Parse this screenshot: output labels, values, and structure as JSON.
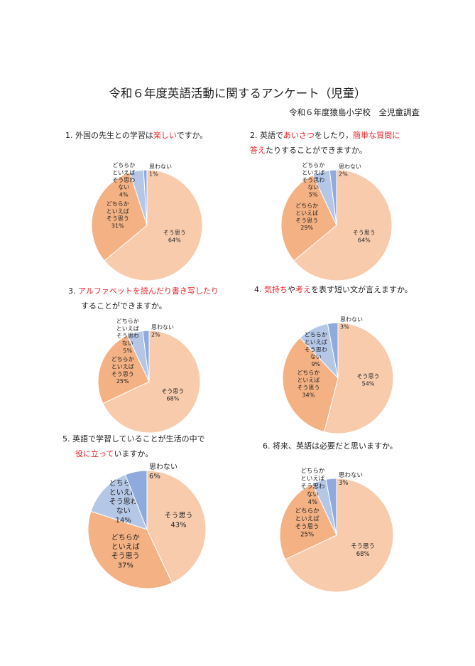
{
  "title": "令和６年度英語活動に関するアンケート（児童）",
  "subtitle": "令和６年度猿島小学校　全児童調査",
  "colors": {
    "accent_red": "#e8232a",
    "slices": [
      "#F8CBAD",
      "#F4B183",
      "#B4C7E7",
      "#8FAADC"
    ]
  },
  "questions": [
    {
      "lines": [
        [
          {
            "text": "1. 外国の先生との学習は",
            "red": false
          },
          {
            "text": "楽しい",
            "red": true
          },
          {
            "text": "ですか。",
            "red": false
          }
        ]
      ]
    },
    {
      "lines": [
        [
          {
            "text": "2. 英語で",
            "red": false
          },
          {
            "text": "あいさつ",
            "red": true
          },
          {
            "text": "をしたり，",
            "red": false
          },
          {
            "text": "簡単な質問に",
            "red": true
          }
        ],
        [
          {
            "text": "答え",
            "red": true
          },
          {
            "text": "たりすることができますか。",
            "red": false
          }
        ]
      ]
    },
    {
      "lines": [
        [
          {
            "text": "3. ",
            "red": false
          },
          {
            "text": "アルファベットを読んだり書き写したり",
            "red": true
          }
        ],
        [
          {
            "text": "することができますか。",
            "red": false
          }
        ]
      ]
    },
    {
      "lines": [
        [
          {
            "text": "4. ",
            "red": false
          },
          {
            "text": "気持ち",
            "red": true
          },
          {
            "text": "や",
            "red": false
          },
          {
            "text": "考え",
            "red": true
          },
          {
            "text": "を表す短い文が言えますか。",
            "red": false
          }
        ]
      ]
    },
    {
      "lines": [
        [
          {
            "text": "5. 英語で学習していることが生活の中で",
            "red": false
          }
        ],
        [
          {
            "text": "役に立って",
            "red": true
          },
          {
            "text": "いますか。",
            "red": false
          }
        ]
      ]
    },
    {
      "lines": [
        [
          {
            "text": "6. 将来、英語は必要だと思いますか。",
            "red": false
          }
        ]
      ]
    }
  ],
  "chart_data": [
    {
      "type": "pie",
      "categories": [
        "そう思う",
        "どちらかといえばそう思う",
        "どちらかといえばそう思わない",
        "思わない"
      ],
      "values": [
        64,
        31,
        4,
        1
      ],
      "labels": [
        [
          "そう思う",
          "64%"
        ],
        [
          "どちらか",
          "といえば",
          "そう思う",
          "31%"
        ],
        [
          "どちらか",
          "といえば",
          "そう思わ",
          "ない",
          "4%"
        ],
        [
          "思わない",
          "1%"
        ]
      ]
    },
    {
      "type": "pie",
      "categories": [
        "そう思う",
        "どちらかといえばそう思う",
        "どちらかといえばそう思わない",
        "思わない"
      ],
      "values": [
        64,
        29,
        5,
        2
      ],
      "labels": [
        [
          "そう思う",
          "64%"
        ],
        [
          "どちらか",
          "といえば",
          "そう思う",
          "29%"
        ],
        [
          "どちらか",
          "といえば",
          "そう思わ",
          "ない",
          "5%"
        ],
        [
          "思わない",
          "2%"
        ]
      ]
    },
    {
      "type": "pie",
      "categories": [
        "そう思う",
        "どちらかといえばそう思う",
        "どちらかといえばそう思わない",
        "思わない"
      ],
      "values": [
        68,
        25,
        5,
        2
      ],
      "labels": [
        [
          "そう思う",
          "68%"
        ],
        [
          "どちらか",
          "といえば",
          "そう思う",
          "25%"
        ],
        [
          "どちらか",
          "といえば",
          "そう思わ",
          "ない",
          "5%"
        ],
        [
          "思わない",
          "2%"
        ]
      ]
    },
    {
      "type": "pie",
      "categories": [
        "そう思う",
        "どちらかといえばそう思う",
        "どちらかといえばそう思わない",
        "思わない"
      ],
      "values": [
        54,
        34,
        9,
        3
      ],
      "labels": [
        [
          "そう思う",
          "54%"
        ],
        [
          "どちらか",
          "といえば",
          "そう思う",
          "34%"
        ],
        [
          "どちらか",
          "といえば",
          "そう思わ",
          "ない",
          "9%"
        ],
        [
          "思わない",
          "3%"
        ]
      ]
    },
    {
      "type": "pie",
      "categories": [
        "そう思う",
        "どちらかといえばそう思う",
        "どちらかといえばそう思わない",
        "思わない"
      ],
      "values": [
        43,
        37,
        14,
        6
      ],
      "labels": [
        [
          "そう思う",
          "43%"
        ],
        [
          "どちらか",
          "といえば",
          "そう思う",
          "37%"
        ],
        [
          "どちらか",
          "といえば",
          "そう思わ",
          "ない",
          "14%"
        ],
        [
          "思わない",
          "6%"
        ]
      ]
    },
    {
      "type": "pie",
      "categories": [
        "そう思う",
        "どちらかといえばそう思う",
        "どちらかといえばそう思わない",
        "思わない"
      ],
      "values": [
        68,
        25,
        4,
        3
      ],
      "labels": [
        [
          "そう思う",
          "68%"
        ],
        [
          "どちらか",
          "といえば",
          "そう思う",
          "25%"
        ],
        [
          "どちらか",
          "といえば",
          "そう思わ",
          "ない",
          "4%"
        ],
        [
          "思わない",
          "3%"
        ]
      ]
    }
  ]
}
